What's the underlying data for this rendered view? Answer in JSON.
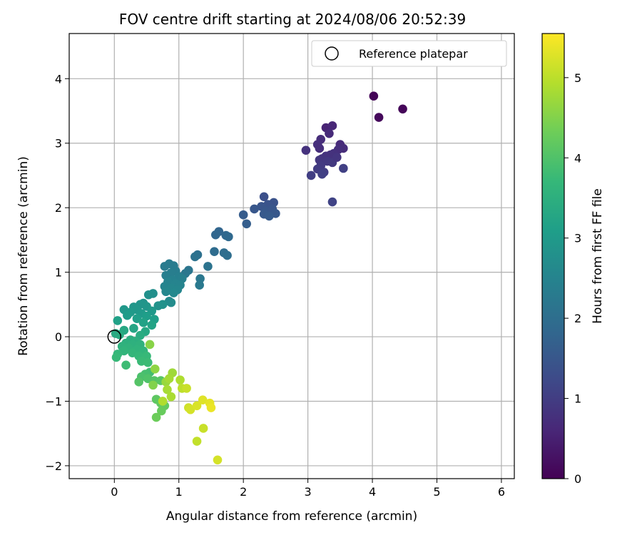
{
  "chart_data": {
    "type": "scatter",
    "title": "FOV centre drift starting at 2024/08/06 20:52:39",
    "xlabel": "Angular distance from reference (arcmin)",
    "ylabel": "Rotation from reference (arcmin)",
    "xlim": [
      -0.7,
      6.2
    ],
    "ylim": [
      -2.2,
      4.7
    ],
    "xticks": [
      0,
      1,
      2,
      3,
      4,
      5,
      6
    ],
    "yticks": [
      -2,
      -1,
      0,
      1,
      2,
      3,
      4
    ],
    "grid": true,
    "legend": {
      "placement": "top-right",
      "entries": [
        "Reference platepar"
      ]
    },
    "reference_point": {
      "x": 0,
      "y": 0,
      "name": "Reference platepar"
    },
    "colorbar": {
      "label": "Hours from first FF file",
      "colormap": "viridis",
      "range": [
        0,
        5.55
      ],
      "ticks": [
        0,
        1,
        2,
        3,
        4,
        5
      ]
    },
    "points": [
      {
        "x": 4.02,
        "y": 3.73,
        "c": 0.05
      },
      {
        "x": 4.47,
        "y": 3.53,
        "c": 0.08
      },
      {
        "x": 4.1,
        "y": 3.4,
        "c": 0.12
      },
      {
        "x": 3.28,
        "y": 3.24,
        "c": 0.55
      },
      {
        "x": 3.38,
        "y": 3.27,
        "c": 0.6
      },
      {
        "x": 3.33,
        "y": 3.15,
        "c": 0.65
      },
      {
        "x": 3.2,
        "y": 3.06,
        "c": 0.7
      },
      {
        "x": 3.15,
        "y": 2.98,
        "c": 0.75
      },
      {
        "x": 2.97,
        "y": 2.89,
        "c": 0.8
      },
      {
        "x": 3.18,
        "y": 2.92,
        "c": 0.72
      },
      {
        "x": 3.5,
        "y": 2.98,
        "c": 0.68
      },
      {
        "x": 3.55,
        "y": 2.92,
        "c": 0.7
      },
      {
        "x": 3.47,
        "y": 2.9,
        "c": 0.75
      },
      {
        "x": 3.4,
        "y": 2.84,
        "c": 0.78
      },
      {
        "x": 3.35,
        "y": 2.82,
        "c": 0.8
      },
      {
        "x": 3.28,
        "y": 2.8,
        "c": 0.82
      },
      {
        "x": 3.22,
        "y": 2.76,
        "c": 0.85
      },
      {
        "x": 3.18,
        "y": 2.74,
        "c": 0.88
      },
      {
        "x": 3.3,
        "y": 2.72,
        "c": 0.9
      },
      {
        "x": 3.38,
        "y": 2.7,
        "c": 0.92
      },
      {
        "x": 3.45,
        "y": 2.78,
        "c": 0.86
      },
      {
        "x": 3.2,
        "y": 2.65,
        "c": 0.95
      },
      {
        "x": 3.15,
        "y": 2.6,
        "c": 0.98
      },
      {
        "x": 3.25,
        "y": 2.55,
        "c": 1.0
      },
      {
        "x": 3.05,
        "y": 2.5,
        "c": 1.02
      },
      {
        "x": 3.22,
        "y": 2.52,
        "c": 1.05
      },
      {
        "x": 3.55,
        "y": 2.61,
        "c": 1.05
      },
      {
        "x": 3.38,
        "y": 2.09,
        "c": 1.1
      },
      {
        "x": 2.32,
        "y": 2.17,
        "c": 1.35
      },
      {
        "x": 2.47,
        "y": 2.08,
        "c": 1.4
      },
      {
        "x": 2.38,
        "y": 2.05,
        "c": 1.42
      },
      {
        "x": 2.28,
        "y": 2.02,
        "c": 1.45
      },
      {
        "x": 2.17,
        "y": 1.98,
        "c": 1.5
      },
      {
        "x": 2.35,
        "y": 1.95,
        "c": 1.5
      },
      {
        "x": 2.45,
        "y": 1.98,
        "c": 1.48
      },
      {
        "x": 2.5,
        "y": 1.91,
        "c": 1.52
      },
      {
        "x": 2.32,
        "y": 1.9,
        "c": 1.55
      },
      {
        "x": 2.4,
        "y": 1.87,
        "c": 1.58
      },
      {
        "x": 2.0,
        "y": 1.89,
        "c": 1.6
      },
      {
        "x": 2.05,
        "y": 1.75,
        "c": 1.65
      },
      {
        "x": 1.62,
        "y": 1.63,
        "c": 1.8
      },
      {
        "x": 1.57,
        "y": 1.58,
        "c": 1.82
      },
      {
        "x": 1.73,
        "y": 1.57,
        "c": 1.85
      },
      {
        "x": 1.77,
        "y": 1.55,
        "c": 1.88
      },
      {
        "x": 1.55,
        "y": 1.32,
        "c": 1.95
      },
      {
        "x": 1.7,
        "y": 1.3,
        "c": 1.98
      },
      {
        "x": 1.75,
        "y": 1.26,
        "c": 2.0
      },
      {
        "x": 1.29,
        "y": 1.27,
        "c": 2.05
      },
      {
        "x": 1.25,
        "y": 1.24,
        "c": 2.08
      },
      {
        "x": 1.45,
        "y": 1.09,
        "c": 2.12
      },
      {
        "x": 1.15,
        "y": 1.03,
        "c": 2.15
      },
      {
        "x": 1.1,
        "y": 0.98,
        "c": 2.2
      },
      {
        "x": 1.33,
        "y": 0.9,
        "c": 2.2
      },
      {
        "x": 1.32,
        "y": 0.8,
        "c": 2.25
      },
      {
        "x": 0.85,
        "y": 1.13,
        "c": 2.3
      },
      {
        "x": 0.78,
        "y": 1.09,
        "c": 2.3
      },
      {
        "x": 0.92,
        "y": 1.1,
        "c": 2.32
      },
      {
        "x": 0.95,
        "y": 1.02,
        "c": 2.35
      },
      {
        "x": 0.88,
        "y": 0.99,
        "c": 2.38
      },
      {
        "x": 0.8,
        "y": 0.95,
        "c": 2.4
      },
      {
        "x": 1.0,
        "y": 0.93,
        "c": 2.4
      },
      {
        "x": 1.05,
        "y": 0.9,
        "c": 2.42
      },
      {
        "x": 0.9,
        "y": 0.88,
        "c": 2.45
      },
      {
        "x": 0.83,
        "y": 0.85,
        "c": 2.48
      },
      {
        "x": 0.95,
        "y": 0.82,
        "c": 2.5
      },
      {
        "x": 1.02,
        "y": 0.8,
        "c": 2.5
      },
      {
        "x": 0.78,
        "y": 0.78,
        "c": 2.52
      },
      {
        "x": 0.88,
        "y": 0.75,
        "c": 2.55
      },
      {
        "x": 0.98,
        "y": 0.73,
        "c": 2.55
      },
      {
        "x": 0.8,
        "y": 0.7,
        "c": 2.58
      },
      {
        "x": 0.92,
        "y": 0.68,
        "c": 2.6
      },
      {
        "x": 0.85,
        "y": 0.55,
        "c": 2.65
      },
      {
        "x": 0.88,
        "y": 0.53,
        "c": 2.68
      },
      {
        "x": 0.6,
        "y": 0.67,
        "c": 2.75
      },
      {
        "x": 0.53,
        "y": 0.65,
        "c": 2.78
      },
      {
        "x": 0.75,
        "y": 0.5,
        "c": 2.8
      },
      {
        "x": 0.68,
        "y": 0.48,
        "c": 2.82
      },
      {
        "x": 0.45,
        "y": 0.52,
        "c": 2.85
      },
      {
        "x": 0.4,
        "y": 0.5,
        "c": 2.88
      },
      {
        "x": 0.5,
        "y": 0.47,
        "c": 2.9
      },
      {
        "x": 0.3,
        "y": 0.46,
        "c": 2.92
      },
      {
        "x": 0.35,
        "y": 0.42,
        "c": 2.95
      },
      {
        "x": 0.15,
        "y": 0.42,
        "c": 2.95
      },
      {
        "x": 0.58,
        "y": 0.4,
        "c": 2.98
      },
      {
        "x": 0.25,
        "y": 0.38,
        "c": 3.0
      },
      {
        "x": 0.42,
        "y": 0.36,
        "c": 3.0
      },
      {
        "x": 0.2,
        "y": 0.33,
        "c": 3.05
      },
      {
        "x": 0.5,
        "y": 0.32,
        "c": 3.08
      },
      {
        "x": 0.35,
        "y": 0.28,
        "c": 3.1
      },
      {
        "x": 0.62,
        "y": 0.27,
        "c": 3.1
      },
      {
        "x": 0.05,
        "y": 0.25,
        "c": 3.15
      },
      {
        "x": 0.45,
        "y": 0.22,
        "c": 3.18
      },
      {
        "x": 0.58,
        "y": 0.18,
        "c": 3.2
      },
      {
        "x": 0.3,
        "y": 0.13,
        "c": 3.25
      },
      {
        "x": 0.15,
        "y": 0.1,
        "c": 3.3
      },
      {
        "x": 0.48,
        "y": 0.08,
        "c": 3.32
      },
      {
        "x": 0.02,
        "y": 0.05,
        "c": 3.35
      },
      {
        "x": 0.08,
        "y": 0.03,
        "c": 3.38
      },
      {
        "x": 0.4,
        "y": 0.02,
        "c": 3.4
      },
      {
        "x": 0.25,
        "y": -0.05,
        "c": 3.45
      },
      {
        "x": 0.33,
        "y": -0.07,
        "c": 3.48
      },
      {
        "x": 0.18,
        "y": -0.1,
        "c": 3.5
      },
      {
        "x": 0.28,
        "y": -0.12,
        "c": 3.52
      },
      {
        "x": 0.4,
        "y": -0.12,
        "c": 3.55
      },
      {
        "x": 0.12,
        "y": -0.15,
        "c": 3.55
      },
      {
        "x": 0.22,
        "y": -0.17,
        "c": 3.58
      },
      {
        "x": 0.35,
        "y": -0.2,
        "c": 3.6
      },
      {
        "x": 0.45,
        "y": -0.22,
        "c": 3.62
      },
      {
        "x": 0.15,
        "y": -0.22,
        "c": 3.62
      },
      {
        "x": 0.28,
        "y": -0.25,
        "c": 3.65
      },
      {
        "x": 0.05,
        "y": -0.27,
        "c": 3.68
      },
      {
        "x": 0.38,
        "y": -0.3,
        "c": 3.7
      },
      {
        "x": 0.5,
        "y": -0.3,
        "c": 3.72
      },
      {
        "x": 0.03,
        "y": -0.32,
        "c": 3.72
      },
      {
        "x": 0.42,
        "y": -0.38,
        "c": 3.75
      },
      {
        "x": 0.52,
        "y": -0.4,
        "c": 3.78
      },
      {
        "x": 0.18,
        "y": -0.44,
        "c": 3.8
      },
      {
        "x": 0.55,
        "y": -0.55,
        "c": 3.85
      },
      {
        "x": 0.48,
        "y": -0.58,
        "c": 3.9
      },
      {
        "x": 0.42,
        "y": -0.62,
        "c": 3.95
      },
      {
        "x": 0.52,
        "y": -0.65,
        "c": 4.0
      },
      {
        "x": 0.38,
        "y": -0.7,
        "c": 4.05
      },
      {
        "x": 0.62,
        "y": -0.68,
        "c": 4.05
      },
      {
        "x": 0.72,
        "y": -0.68,
        "c": 4.1
      },
      {
        "x": 0.65,
        "y": -0.97,
        "c": 4.15
      },
      {
        "x": 0.72,
        "y": -1.03,
        "c": 4.2
      },
      {
        "x": 0.78,
        "y": -1.07,
        "c": 4.22
      },
      {
        "x": 0.73,
        "y": -1.15,
        "c": 4.25
      },
      {
        "x": 0.65,
        "y": -1.25,
        "c": 4.3
      },
      {
        "x": 0.6,
        "y": -0.75,
        "c": 4.5
      },
      {
        "x": 0.63,
        "y": -0.5,
        "c": 4.6
      },
      {
        "x": 0.55,
        "y": -0.12,
        "c": 4.55
      },
      {
        "x": 0.8,
        "y": -0.7,
        "c": 4.7
      },
      {
        "x": 0.9,
        "y": -0.56,
        "c": 4.75
      },
      {
        "x": 0.85,
        "y": -0.65,
        "c": 4.8
      },
      {
        "x": 0.82,
        "y": -0.82,
        "c": 4.82
      },
      {
        "x": 0.88,
        "y": -0.93,
        "c": 4.85
      },
      {
        "x": 1.02,
        "y": -0.67,
        "c": 4.88
      },
      {
        "x": 0.75,
        "y": -1.0,
        "c": 4.9
      },
      {
        "x": 1.05,
        "y": -0.8,
        "c": 5.0
      },
      {
        "x": 1.12,
        "y": -0.8,
        "c": 5.1
      },
      {
        "x": 1.15,
        "y": -1.1,
        "c": 5.15
      },
      {
        "x": 1.18,
        "y": -1.13,
        "c": 5.2
      },
      {
        "x": 1.28,
        "y": -1.07,
        "c": 5.25
      },
      {
        "x": 1.37,
        "y": -0.98,
        "c": 5.3
      },
      {
        "x": 1.48,
        "y": -1.03,
        "c": 5.35
      },
      {
        "x": 1.5,
        "y": -1.1,
        "c": 5.4
      },
      {
        "x": 1.38,
        "y": -1.42,
        "c": 5.1
      },
      {
        "x": 1.28,
        "y": -1.62,
        "c": 5.05
      },
      {
        "x": 1.6,
        "y": -1.91,
        "c": 5.2
      }
    ]
  }
}
